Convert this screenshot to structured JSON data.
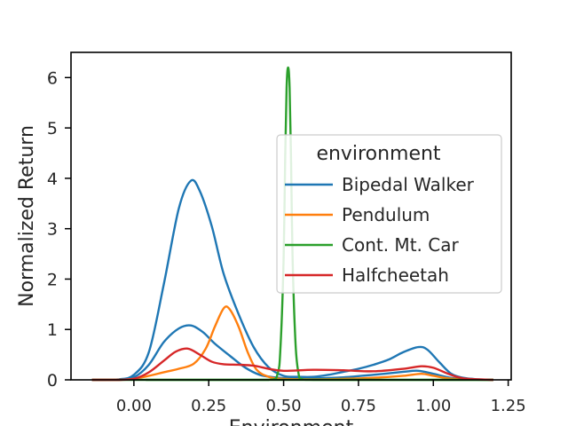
{
  "chart_data": {
    "type": "line",
    "title": "",
    "xlabel": "Environment",
    "ylabel": "Normalized Return",
    "xlim": [
      -0.21,
      1.26
    ],
    "ylim": [
      0,
      6.5
    ],
    "grid": false,
    "x_ticks": [
      "0.00",
      "0.25",
      "0.50",
      "0.75",
      "1.00",
      "1.25"
    ],
    "y_ticks": [
      "0",
      "1",
      "2",
      "3",
      "4",
      "5",
      "6"
    ],
    "legend": {
      "title": "environment",
      "placement": "right",
      "entries": [
        "Bipedal Walker",
        "Pendulum",
        "Cont. Mt. Car",
        "Halfcheetah"
      ]
    },
    "series": [
      {
        "name": "Bipedal Walker",
        "color": "#1f77b4",
        "x": [
          -0.14,
          -0.1,
          -0.05,
          0.0,
          0.05,
          0.1,
          0.15,
          0.19,
          0.22,
          0.26,
          0.3,
          0.35,
          0.4,
          0.45,
          0.5,
          0.55,
          0.6,
          0.65,
          0.7,
          0.75,
          0.8,
          0.85,
          0.9,
          0.95,
          0.98,
          1.02,
          1.06,
          1.1,
          1.15,
          1.2
        ],
        "y": [
          0.0,
          0.0,
          0.01,
          0.1,
          0.55,
          1.9,
          3.4,
          3.95,
          3.75,
          3.05,
          2.1,
          1.3,
          0.65,
          0.25,
          0.08,
          0.06,
          0.06,
          0.1,
          0.16,
          0.22,
          0.3,
          0.4,
          0.55,
          0.65,
          0.6,
          0.35,
          0.12,
          0.04,
          0.01,
          0.0
        ]
      },
      {
        "name": "Bipedal Walker",
        "color": "#1f77b4",
        "x": [
          -0.14,
          -0.05,
          0.0,
          0.05,
          0.1,
          0.15,
          0.19,
          0.23,
          0.27,
          0.32,
          0.37,
          0.42,
          0.47,
          0.52,
          0.6,
          0.7,
          0.8,
          0.9,
          0.95,
          1.0,
          1.05,
          1.1,
          1.2
        ],
        "y": [
          0.0,
          0.0,
          0.05,
          0.3,
          0.75,
          1.02,
          1.08,
          0.95,
          0.72,
          0.48,
          0.25,
          0.1,
          0.05,
          0.03,
          0.03,
          0.05,
          0.1,
          0.16,
          0.18,
          0.12,
          0.05,
          0.01,
          0.0
        ]
      },
      {
        "name": "Pendulum",
        "color": "#ff7f0e",
        "x": [
          -0.14,
          -0.05,
          0.0,
          0.05,
          0.1,
          0.15,
          0.2,
          0.24,
          0.27,
          0.3,
          0.32,
          0.35,
          0.38,
          0.41,
          0.45,
          0.5,
          0.6,
          0.7,
          0.8,
          0.9,
          0.96,
          1.0,
          1.05,
          1.1,
          1.2
        ],
        "y": [
          0.0,
          0.0,
          0.02,
          0.08,
          0.15,
          0.22,
          0.32,
          0.62,
          1.05,
          1.42,
          1.4,
          1.05,
          0.55,
          0.2,
          0.06,
          0.02,
          0.01,
          0.02,
          0.04,
          0.08,
          0.12,
          0.08,
          0.03,
          0.01,
          0.0
        ]
      },
      {
        "name": "Cont. Mt. Car",
        "color": "#2ca02c",
        "x": [
          -0.14,
          0.3,
          0.45,
          0.48,
          0.49,
          0.5,
          0.505,
          0.51,
          0.515,
          0.52,
          0.525,
          0.53,
          0.54,
          0.55,
          0.56,
          0.6,
          0.8,
          1.2
        ],
        "y": [
          0.0,
          0.0,
          0.0,
          0.12,
          0.7,
          2.4,
          4.3,
          5.8,
          6.2,
          5.8,
          4.3,
          2.4,
          0.7,
          0.12,
          0.02,
          0.0,
          0.0,
          0.0
        ],
        "secondary": {
          "x": [
            0.04,
            1.2
          ],
          "y": [
            0.0,
            0.0
          ]
        }
      },
      {
        "name": "Halfcheetah",
        "color": "#d62728",
        "x": [
          -0.14,
          -0.05,
          0.0,
          0.05,
          0.1,
          0.14,
          0.18,
          0.22,
          0.26,
          0.3,
          0.35,
          0.4,
          0.45,
          0.5,
          0.6,
          0.7,
          0.8,
          0.9,
          0.96,
          1.0,
          1.05,
          1.1,
          1.2
        ],
        "y": [
          0.0,
          0.0,
          0.02,
          0.15,
          0.38,
          0.56,
          0.62,
          0.5,
          0.36,
          0.31,
          0.3,
          0.28,
          0.22,
          0.18,
          0.2,
          0.19,
          0.17,
          0.22,
          0.27,
          0.24,
          0.12,
          0.03,
          0.0
        ]
      }
    ]
  }
}
